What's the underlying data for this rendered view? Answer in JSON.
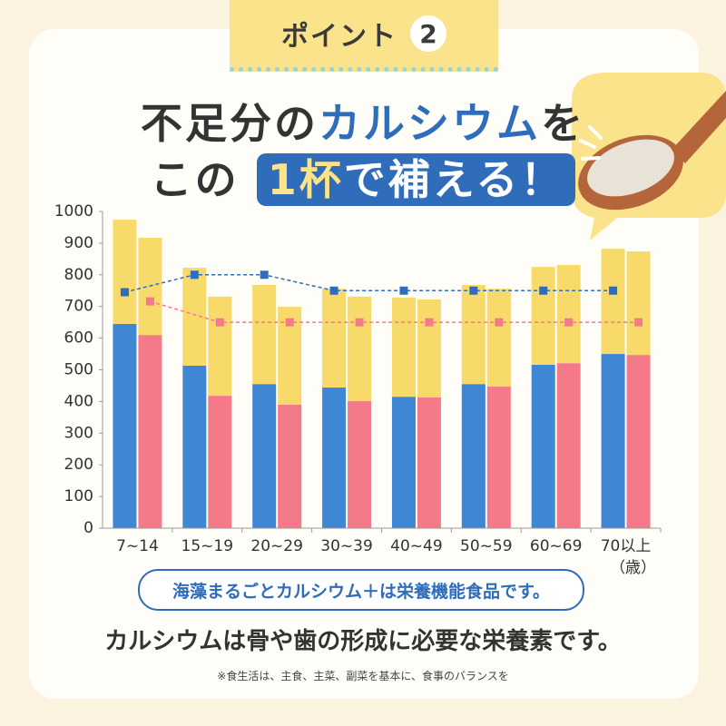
{
  "badge": {
    "label": "ポイント",
    "number": "2"
  },
  "title": {
    "line1": [
      "不足分の",
      "カルシウム",
      "を"
    ],
    "line2": [
      "この",
      "1杯",
      "で補える！"
    ]
  },
  "chart_data": {
    "type": "bar",
    "stacked": true,
    "categories": [
      "7~14",
      "15~19",
      "20~29",
      "30~39",
      "40~49",
      "50~59",
      "60~69",
      "70以上"
    ],
    "xlabel": "（歳）",
    "series": [
      {
        "color": "#3f86d4",
        "stack": 0,
        "values": [
          645,
          513,
          455,
          444,
          415,
          455,
          516,
          550
        ]
      },
      {
        "color": "#f8da6a",
        "stack": 0,
        "values": [
          329,
          309,
          313,
          312,
          313,
          313,
          309,
          332
        ]
      },
      {
        "color": "#f47a8a",
        "stack": 1,
        "values": [
          610,
          418,
          390,
          401,
          413,
          447,
          521,
          547
        ]
      },
      {
        "color": "#f8da6a",
        "stack": 1,
        "values": [
          307,
          313,
          309,
          330,
          309,
          309,
          310,
          327
        ]
      }
    ],
    "lines": [
      {
        "color": "#2f6cb9",
        "stack": 0,
        "values": [
          745,
          800,
          800,
          750,
          750,
          750,
          750,
          750
        ]
      },
      {
        "color": "#f47a8a",
        "stack": 1,
        "values": [
          716,
          650,
          650,
          650,
          650,
          650,
          650,
          650
        ]
      }
    ],
    "ylim": [
      0,
      1000
    ],
    "yticks": [
      0,
      100,
      200,
      300,
      400,
      500,
      600,
      700,
      800,
      900,
      1000
    ]
  },
  "note_pill": "海藻まるごとカルシウム＋は栄養機能食品です。",
  "statement": "カルシウムは骨や歯の形成に必要な栄養素です。",
  "footnote": "※食生活は、主食、主菜、副菜を基本に、食事のバランスを"
}
